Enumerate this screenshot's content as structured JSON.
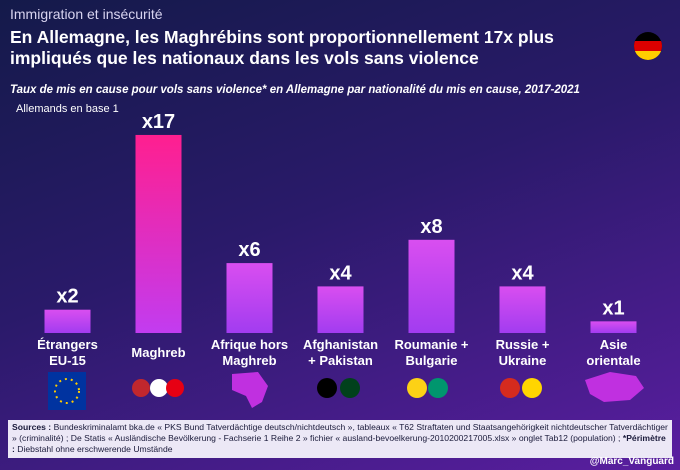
{
  "chart_data": {
    "type": "bar",
    "kicker": "Immigration et insécurité",
    "title": "En Allemagne, les Maghrébins sont proportionnellement 17x plus impliqués que les nationaux dans les vols sans violence",
    "subtitle": "Taux de mis en cause pour vols sans violence* en Allemagne par nationalité du mis en cause, 2017-2021",
    "note": "Allemands en base 1",
    "categories": [
      "Étrangers\nEU-15",
      "Maghreb",
      "Afrique hors\nMaghreb",
      "Afghanistan\n+ Pakistan",
      "Roumanie +\nBulgarie",
      "Russie +\nUkraine",
      "Asie\norientale"
    ],
    "values": [
      2,
      17,
      6,
      4,
      8,
      4,
      1
    ],
    "value_labels": [
      "x2",
      "x17",
      "x6",
      "x4",
      "x8",
      "x4",
      "x1"
    ],
    "color": "#d94ef0",
    "highlight_color": "#ff1f8f",
    "source_label": "Sources :",
    "source_text": "Bundeskriminalamt bka.de « PKS Bund Tatverdächtige deutsch/nichtdeutsch », tableaux « T62 Straftaten und Staatsangehörigkeit nichtdeutscher Tatverdächtiger » (criminalité) ; De Statis « Ausländische Bevölkerung - Fachserie 1 Reihe 2 » fichier « ausland-bevoelkerung-2010200217005.xlsx » onglet Tab12 (population) ; ",
    "scope_label": "*Périmètre :",
    "scope_text": "Diebstahl ohne erschwerende Umstände",
    "credit": "@Marc_Vanguard"
  }
}
